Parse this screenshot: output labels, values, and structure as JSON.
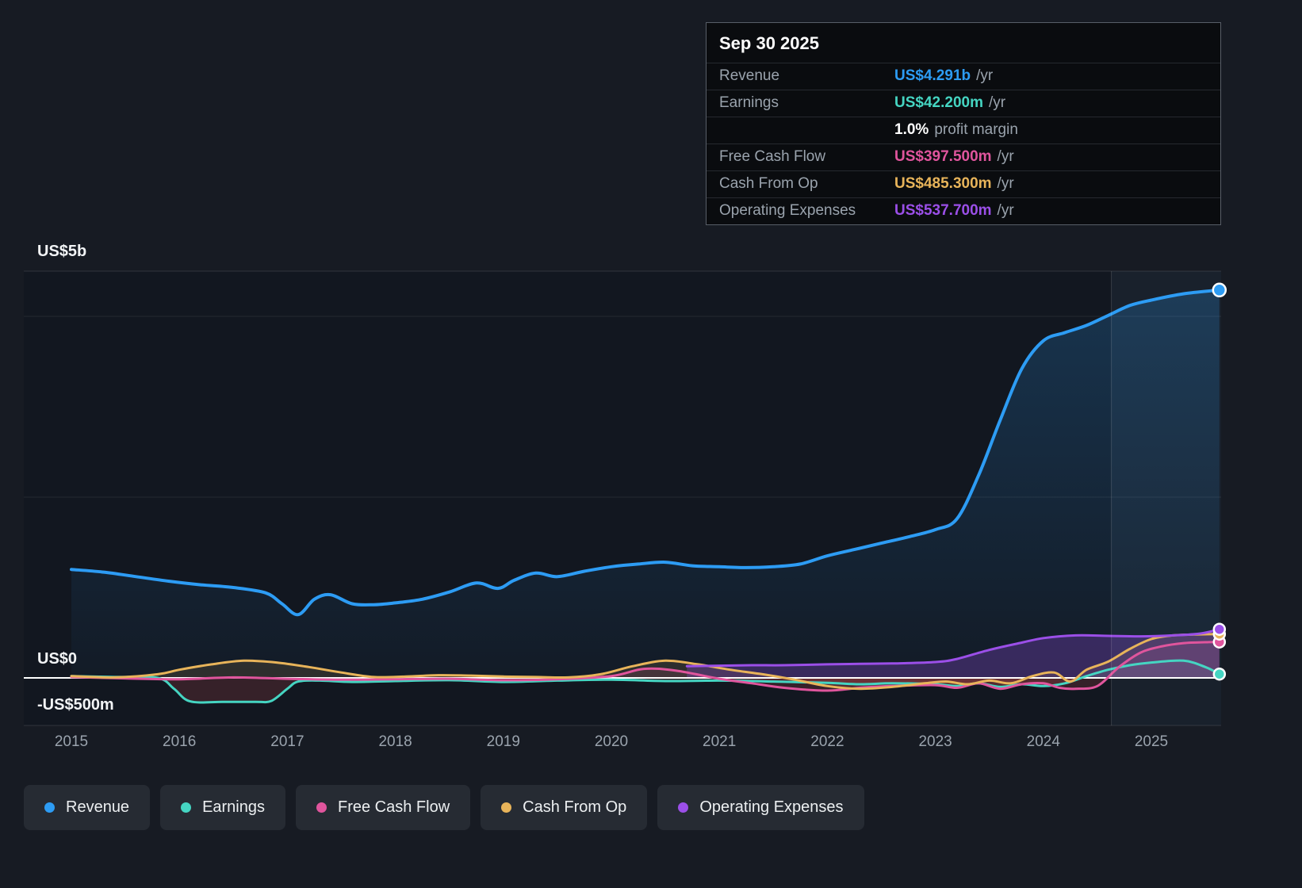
{
  "tooltip": {
    "date": "Sep 30 2025",
    "rows": [
      {
        "label": "Revenue",
        "value": "US$4.291b",
        "suffix": "/yr",
        "color": "#2d9cf4"
      },
      {
        "label": "Earnings",
        "value": "US$42.200m",
        "suffix": "/yr",
        "color": "#45d5c2"
      },
      {
        "label": "",
        "value": "1.0%",
        "suffix": "profit margin",
        "color": "#ffffff"
      },
      {
        "label": "Free Cash Flow",
        "value": "US$397.500m",
        "suffix": "/yr",
        "color": "#e0559d"
      },
      {
        "label": "Cash From Op",
        "value": "US$485.300m",
        "suffix": "/yr",
        "color": "#e8b45a"
      },
      {
        "label": "Operating Expenses",
        "value": "US$537.700m",
        "suffix": "/yr",
        "color": "#9b4fe8"
      }
    ]
  },
  "axis": {
    "y_labels": [
      "US$5b",
      "US$0",
      "-US$500m"
    ],
    "x_labels": [
      "2015",
      "2016",
      "2017",
      "2018",
      "2019",
      "2020",
      "2021",
      "2022",
      "2023",
      "2024",
      "2025"
    ]
  },
  "legend": {
    "items": [
      {
        "label": "Revenue",
        "color": "#2d9cf4"
      },
      {
        "label": "Earnings",
        "color": "#45d5c2"
      },
      {
        "label": "Free Cash Flow",
        "color": "#e0559d"
      },
      {
        "label": "Cash From Op",
        "color": "#e8b45a"
      },
      {
        "label": "Operating Expenses",
        "color": "#9b4fe8"
      }
    ]
  },
  "chart_data": {
    "type": "line",
    "title": "",
    "xlabel": "",
    "ylabel": "US$",
    "y_unit": "US$ millions",
    "ylim": [
      -500,
      5000
    ],
    "x_ticks": [
      2015,
      2016,
      2017,
      2018,
      2019,
      2020,
      2021,
      2022,
      2023,
      2024,
      2025
    ],
    "gridline_values": [
      4000,
      2000
    ],
    "zero_line": 0,
    "highlight_from_x": 2024.63,
    "legend_position": "bottom",
    "series": [
      {
        "name": "Revenue",
        "color": "#2d9cf4",
        "x": [
          2015,
          2015.3,
          2015.6,
          2015.9,
          2016.2,
          2016.5,
          2016.8,
          2016.95,
          2017.1,
          2017.25,
          2017.4,
          2017.6,
          2017.8,
          2018,
          2018.25,
          2018.5,
          2018.75,
          2018.95,
          2019.1,
          2019.3,
          2019.5,
          2019.75,
          2020,
          2020.25,
          2020.5,
          2020.75,
          2021,
          2021.25,
          2021.5,
          2021.75,
          2022,
          2022.25,
          2022.5,
          2022.75,
          2023,
          2023.2,
          2023.4,
          2023.6,
          2023.8,
          2024,
          2024.2,
          2024.4,
          2024.6,
          2024.8,
          2025,
          2025.3,
          2025.63
        ],
        "values": [
          1200,
          1170,
          1120,
          1070,
          1030,
          1000,
          940,
          820,
          700,
          870,
          920,
          820,
          810,
          830,
          870,
          950,
          1050,
          990,
          1080,
          1160,
          1120,
          1180,
          1230,
          1260,
          1280,
          1240,
          1230,
          1220,
          1230,
          1260,
          1350,
          1420,
          1490,
          1560,
          1640,
          1760,
          2240,
          2850,
          3420,
          3730,
          3820,
          3900,
          4010,
          4120,
          4180,
          4250,
          4291
        ]
      },
      {
        "name": "Earnings",
        "color": "#45d5c2",
        "x": [
          2015,
          2015.4,
          2015.8,
          2015.95,
          2016.1,
          2016.4,
          2016.7,
          2016.85,
          2017,
          2017.1,
          2017.3,
          2017.6,
          2018,
          2018.5,
          2019,
          2019.5,
          2020,
          2020.5,
          2021,
          2021.5,
          2022,
          2022.3,
          2022.6,
          2023,
          2023.2,
          2023.4,
          2023.6,
          2023.8,
          2024,
          2024.2,
          2024.4,
          2024.6,
          2024.8,
          2025,
          2025.3,
          2025.5,
          2025.63
        ],
        "values": [
          20,
          10,
          0,
          -120,
          -260,
          -265,
          -265,
          -255,
          -120,
          -40,
          -30,
          -45,
          -35,
          -25,
          -45,
          -30,
          -20,
          -35,
          -30,
          -40,
          -55,
          -70,
          -60,
          -70,
          -90,
          -60,
          -100,
          -70,
          -90,
          -60,
          20,
          90,
          140,
          170,
          190,
          120,
          42.2
        ]
      },
      {
        "name": "Free Cash Flow",
        "color": "#e0559d",
        "x": [
          2015,
          2015.5,
          2016,
          2016.5,
          2017,
          2017.5,
          2018,
          2018.5,
          2019,
          2019.5,
          2020,
          2020.3,
          2020.6,
          2021,
          2021.3,
          2021.6,
          2022,
          2022.3,
          2022.6,
          2023,
          2023.2,
          2023.4,
          2023.6,
          2023.8,
          2024,
          2024.15,
          2024.3,
          2024.5,
          2024.7,
          2024.9,
          2025.1,
          2025.3,
          2025.5,
          2025.63
        ],
        "values": [
          10,
          -5,
          -15,
          5,
          -10,
          -20,
          -15,
          -10,
          -25,
          -15,
          20,
          100,
          80,
          -10,
          -60,
          -110,
          -140,
          -110,
          -90,
          -80,
          -110,
          -60,
          -120,
          -70,
          -60,
          -110,
          -120,
          -90,
          120,
          280,
          350,
          385,
          395,
          397.5
        ]
      },
      {
        "name": "Cash From Op",
        "color": "#e8b45a",
        "x": [
          2015,
          2015.4,
          2015.8,
          2016,
          2016.3,
          2016.6,
          2016.9,
          2017.2,
          2017.5,
          2017.8,
          2018.1,
          2018.4,
          2018.7,
          2019,
          2019.3,
          2019.6,
          2019.9,
          2020.2,
          2020.5,
          2020.8,
          2021.1,
          2021.4,
          2021.7,
          2022,
          2022.3,
          2022.6,
          2022.9,
          2023.1,
          2023.3,
          2023.5,
          2023.7,
          2023.9,
          2024.1,
          2024.25,
          2024.4,
          2024.6,
          2024.8,
          2025,
          2025.2,
          2025.4,
          2025.63
        ],
        "values": [
          20,
          5,
          40,
          90,
          150,
          190,
          170,
          120,
          60,
          10,
          15,
          30,
          25,
          15,
          10,
          5,
          40,
          130,
          190,
          150,
          90,
          40,
          -20,
          -90,
          -120,
          -100,
          -60,
          -40,
          -70,
          -30,
          -60,
          20,
          60,
          -40,
          90,
          180,
          320,
          430,
          470,
          480,
          485.3
        ]
      },
      {
        "name": "Operating Expenses",
        "color": "#9b4fe8",
        "x": [
          2020.7,
          2021,
          2021.3,
          2021.6,
          2022,
          2022.3,
          2022.6,
          2023,
          2023.2,
          2023.5,
          2023.8,
          2024,
          2024.3,
          2024.6,
          2024.9,
          2025.2,
          2025.45,
          2025.63
        ],
        "values": [
          130,
          135,
          140,
          140,
          150,
          155,
          160,
          175,
          210,
          310,
          390,
          440,
          470,
          465,
          460,
          470,
          490,
          537.7
        ]
      }
    ]
  }
}
